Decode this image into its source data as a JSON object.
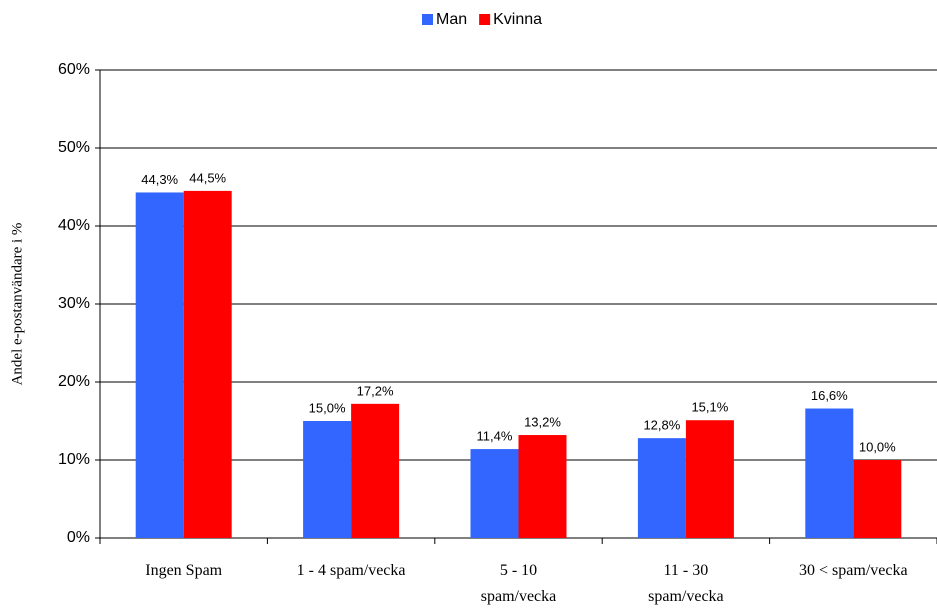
{
  "chart_data": {
    "type": "bar",
    "y_label": "Andel e-postanvändare i %",
    "categories": [
      "Ingen Spam",
      "1 - 4 spam/vecka",
      "5 - 10\nspam/vecka",
      "11 - 30\nspam/vecka",
      "30 < spam/vecka"
    ],
    "series": [
      {
        "name": "Man",
        "color": "#3366ff",
        "values": [
          44.3,
          15.0,
          11.4,
          12.8,
          16.6
        ],
        "value_labels": [
          "44,3%",
          "15,0%",
          "11,4%",
          "12,8%",
          "16,6%"
        ]
      },
      {
        "name": "Kvinna",
        "color": "#ff0000",
        "values": [
          44.5,
          17.2,
          13.2,
          15.1,
          10.0
        ],
        "value_labels": [
          "44,5%",
          "17,2%",
          "13,2%",
          "15,1%",
          "10,0%"
        ]
      }
    ],
    "ylim": [
      0,
      60
    ],
    "yticks": [
      {
        "value": 0,
        "label": "0%"
      },
      {
        "value": 10,
        "label": "10%"
      },
      {
        "value": 20,
        "label": "20%"
      },
      {
        "value": 30,
        "label": "30%"
      },
      {
        "value": 40,
        "label": "40%"
      },
      {
        "value": 50,
        "label": "50%"
      },
      {
        "value": 60,
        "label": "60%"
      }
    ],
    "grid": true,
    "legend": "top"
  }
}
